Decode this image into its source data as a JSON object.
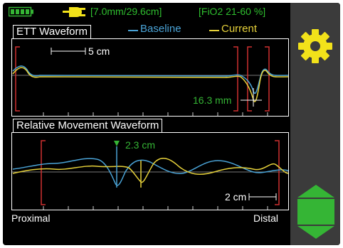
{
  "status_bar": {
    "tube_info": "[7.0mm/29.6cm]",
    "fio2_info": "[FiO2 21-60 %]",
    "battery_icon": "battery-full-icon",
    "power_icon": "power-plug-icon"
  },
  "legend": {
    "baseline_label": "Baseline",
    "current_label": "Current"
  },
  "ett_panel": {
    "title": "ETT Waveform",
    "scale_label": "5 cm",
    "measurement_label": "16.3 mm"
  },
  "movement_panel": {
    "title": "Relative Movement Waveform",
    "measurement_label": "2.3 cm",
    "scale_label": "2 cm"
  },
  "axis": {
    "left_label": "Proximal",
    "right_label": "Distal"
  },
  "sidebar": {
    "settings_icon": "gear-icon",
    "nav_icon": "hexagon-arrows-icon"
  },
  "colors": {
    "baseline": "#4aa3d6",
    "current": "#e6d13a",
    "accent_green": "#35b535",
    "marker_red": "#d03030",
    "gear": "#f2e21a"
  }
}
